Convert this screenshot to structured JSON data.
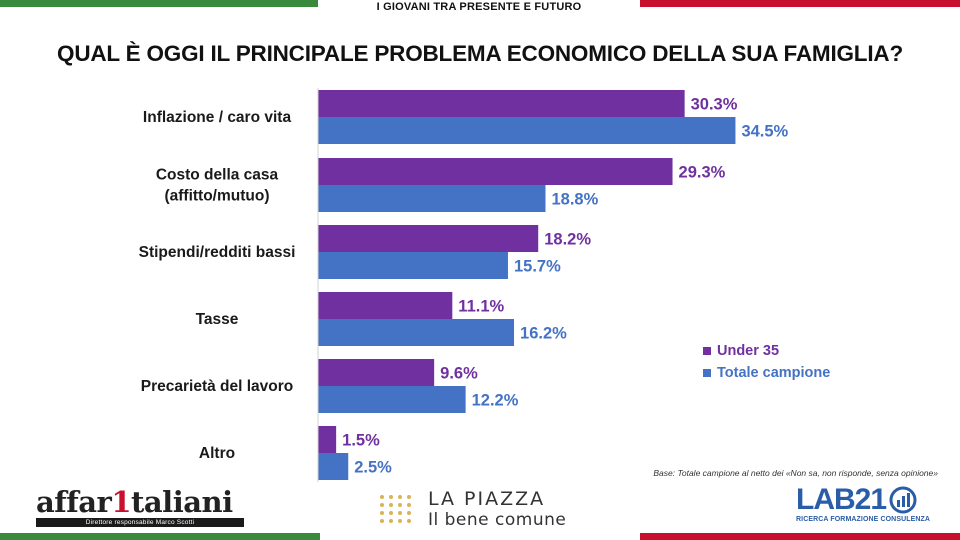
{
  "header": {
    "top_strip": "I GIOVANI TRA PRESENTE E FUTURO",
    "title": "QUAL È OGGI IL PRINCIPALE PROBLEMA ECONOMICO DELLA SUA FAMIGLIA?"
  },
  "colors": {
    "under35": "#7030a0",
    "totale": "#4472c4",
    "flag_green": "#3a8a3e",
    "flag_red": "#c8102e"
  },
  "chart_data": {
    "type": "bar",
    "orientation": "horizontal",
    "title": "QUAL È OGGI IL PRINCIPALE PROBLEMA ECONOMICO DELLA SUA FAMIGLIA?",
    "categories": [
      [
        "Inflazione / caro vita"
      ],
      [
        "Costo della casa",
        "(affitto/mutuo)"
      ],
      [
        "Stipendi/redditi bassi"
      ],
      [
        "Tasse"
      ],
      [
        "Precarietà del lavoro"
      ],
      [
        "Altro"
      ]
    ],
    "series": [
      {
        "name": "Under 35",
        "values": [
          30.3,
          29.3,
          18.2,
          11.1,
          9.6,
          1.5
        ],
        "labels": [
          "30.3%",
          "29.3%",
          "18.2%",
          "11.1%",
          "9.6%",
          "1.5%"
        ]
      },
      {
        "name": "Totale campione",
        "values": [
          34.5,
          18.8,
          15.7,
          16.2,
          12.2,
          2.5
        ],
        "labels": [
          "34.5%",
          "18.8%",
          "15.7%",
          "16.2%",
          "12.2%",
          "2.5%"
        ]
      }
    ],
    "unit": "%",
    "xlim": [
      0,
      50
    ],
    "grid": false,
    "legend": "right"
  },
  "note": "Base: Totale campione al netto dei «Non sa, non risponde, senza opinione»",
  "logos": {
    "affari_a": "affar",
    "affari_one": "1",
    "affari_b": "taliani",
    "affari_sub": "Direttore responsabile Marco Scotti",
    "piazza_l1": "LA PIAZZA",
    "piazza_l2": "Il bene comune",
    "lab_word": "LAB21",
    "lab_sub": "RICERCA FORMAZIONE CONSULENZA"
  }
}
